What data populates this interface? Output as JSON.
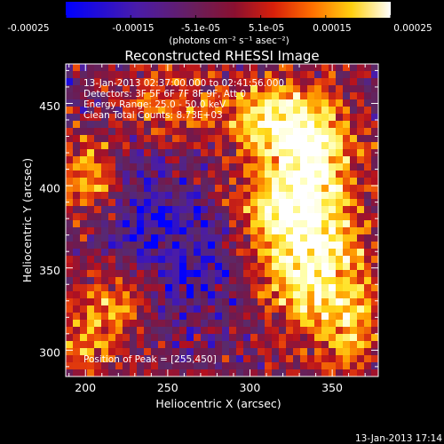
{
  "colorbar": {
    "ticks": [
      "-0.00025",
      "-0.00015",
      "-5.1e-05",
      "5.1e-05",
      "0.00015",
      "0.00025"
    ],
    "units_label": "(photons cm⁻² s⁻¹ asec⁻²)"
  },
  "footer": {
    "timestamp": "13-Jan-2013 17:14"
  },
  "chart_data": {
    "type": "heatmap",
    "title": "Reconstructed RHESSI Image",
    "xlabel": "Heliocentric X (arcsec)",
    "ylabel": "Heliocentric Y (arcsec)",
    "xlim": [
      188,
      378
    ],
    "ylim": [
      284,
      474
    ],
    "xticks": [
      "200",
      "250",
      "300",
      "350"
    ],
    "xtick_values": [
      200,
      250,
      300,
      350
    ],
    "yticks": [
      "300",
      "350",
      "400",
      "450"
    ],
    "ytick_values": [
      300,
      350,
      400,
      450
    ],
    "colorbar_range": [
      -0.00025,
      0.00025
    ],
    "colormap": [
      "#0000ff",
      "#4a1ca8",
      "#5a2a6a",
      "#6e1a50",
      "#b4101e",
      "#e8400a",
      "#ff9a00",
      "#ffe020",
      "#ffffb0",
      "#ffffff"
    ],
    "annotations": [
      "13-Jan-2013 02:37:00.000 to 02:41:56.000",
      "Detectors: 3F 5F 6F 7F 8F 9F, Att 0",
      "Energy Range: 25.0 - 50.0 keV",
      "Clean    Total Counts: 8.73E+03"
    ],
    "peak_label": "Position of Peak = [255,450]",
    "peak_position": [
      255,
      450
    ],
    "grid": false
  }
}
